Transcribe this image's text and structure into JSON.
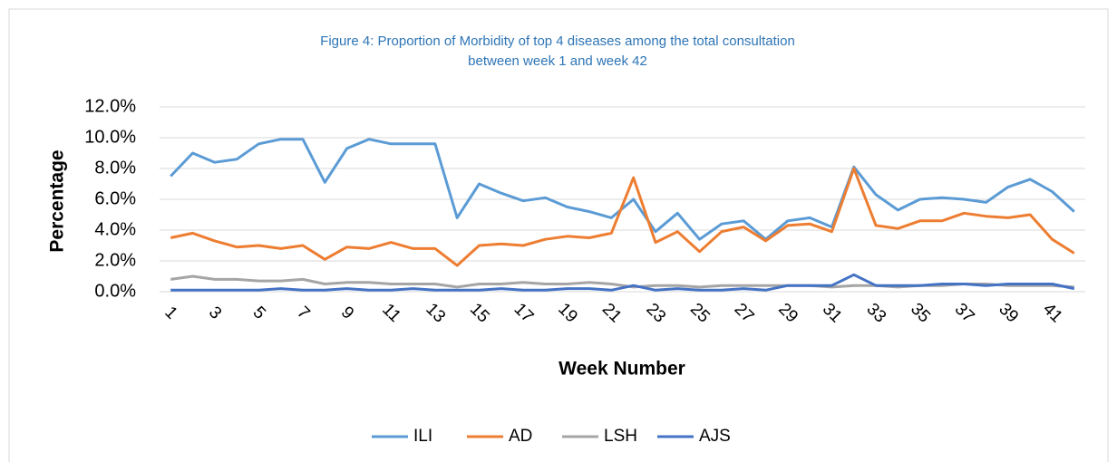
{
  "chart_data": {
    "type": "line",
    "title": [
      "Figure 4: Proportion  of Morbidity of top 4 diseases among the total consultation",
      "between week 1 and week 42"
    ],
    "x_label": "Week Number",
    "y_label": "Percentage",
    "categories": [
      1,
      null,
      3,
      null,
      5,
      null,
      7,
      null,
      9,
      null,
      11,
      null,
      13,
      null,
      15,
      null,
      17,
      null,
      19,
      null,
      21,
      null,
      23,
      null,
      25,
      null,
      27,
      null,
      29,
      null,
      31,
      null,
      33,
      null,
      35,
      null,
      37,
      null,
      39,
      null,
      41,
      null
    ],
    "series": [
      {
        "name": "ILI",
        "color": "#5b9bd5",
        "values": [
          7.5,
          9.0,
          8.4,
          8.6,
          9.6,
          9.9,
          9.9,
          7.1,
          9.3,
          9.9,
          9.6,
          9.6,
          9.6,
          4.8,
          7.0,
          6.4,
          5.9,
          6.1,
          5.5,
          5.2,
          4.8,
          6.0,
          3.9,
          5.1,
          3.4,
          4.4,
          4.6,
          3.4,
          4.6,
          4.8,
          4.2,
          8.1,
          6.3,
          5.3,
          6.0,
          6.1,
          6.0,
          5.8,
          6.8,
          7.3,
          6.5,
          5.2
        ]
      },
      {
        "name": "AD",
        "color": "#ed7d31",
        "values": [
          3.5,
          3.8,
          3.3,
          2.9,
          3.0,
          2.8,
          3.0,
          2.1,
          2.9,
          2.8,
          3.2,
          2.8,
          2.8,
          1.7,
          3.0,
          3.1,
          3.0,
          3.4,
          3.6,
          3.5,
          3.8,
          7.4,
          3.2,
          3.9,
          2.6,
          3.9,
          4.2,
          3.3,
          4.3,
          4.4,
          3.9,
          8.0,
          4.3,
          4.1,
          4.6,
          4.6,
          5.1,
          4.9,
          4.8,
          5.0,
          3.4,
          2.5
        ]
      },
      {
        "name": "LSH",
        "color": "#a5a5a5",
        "values": [
          0.8,
          1.0,
          0.8,
          0.8,
          0.7,
          0.7,
          0.8,
          0.5,
          0.6,
          0.6,
          0.5,
          0.5,
          0.5,
          0.3,
          0.5,
          0.5,
          0.6,
          0.5,
          0.5,
          0.6,
          0.5,
          0.3,
          0.4,
          0.4,
          0.3,
          0.4,
          0.4,
          0.4,
          0.4,
          0.4,
          0.3,
          0.4,
          0.4,
          0.3,
          0.4,
          0.4,
          0.5,
          0.5,
          0.4,
          0.4,
          0.4,
          0.3
        ]
      },
      {
        "name": "AJS",
        "color": "#4472c4",
        "values": [
          0.1,
          0.1,
          0.1,
          0.1,
          0.1,
          0.2,
          0.1,
          0.1,
          0.2,
          0.1,
          0.1,
          0.2,
          0.1,
          0.1,
          0.1,
          0.2,
          0.1,
          0.1,
          0.2,
          0.2,
          0.1,
          0.4,
          0.1,
          0.2,
          0.1,
          0.1,
          0.2,
          0.1,
          0.4,
          0.4,
          0.4,
          1.1,
          0.4,
          0.4,
          0.4,
          0.5,
          0.5,
          0.4,
          0.5,
          0.5,
          0.5,
          0.2
        ]
      }
    ],
    "ylim": [
      0,
      12
    ],
    "yticks": [
      {
        "value": 0,
        "label": "0.0%"
      },
      {
        "value": 2,
        "label": "2.0%"
      },
      {
        "value": 4,
        "label": "4.0%"
      },
      {
        "value": 6,
        "label": "6.0%"
      },
      {
        "value": 8,
        "label": "8.0%"
      },
      {
        "value": 10,
        "label": "10.0%"
      },
      {
        "value": 12,
        "label": "12.0%"
      }
    ],
    "grid": true,
    "legend": "bottom"
  }
}
